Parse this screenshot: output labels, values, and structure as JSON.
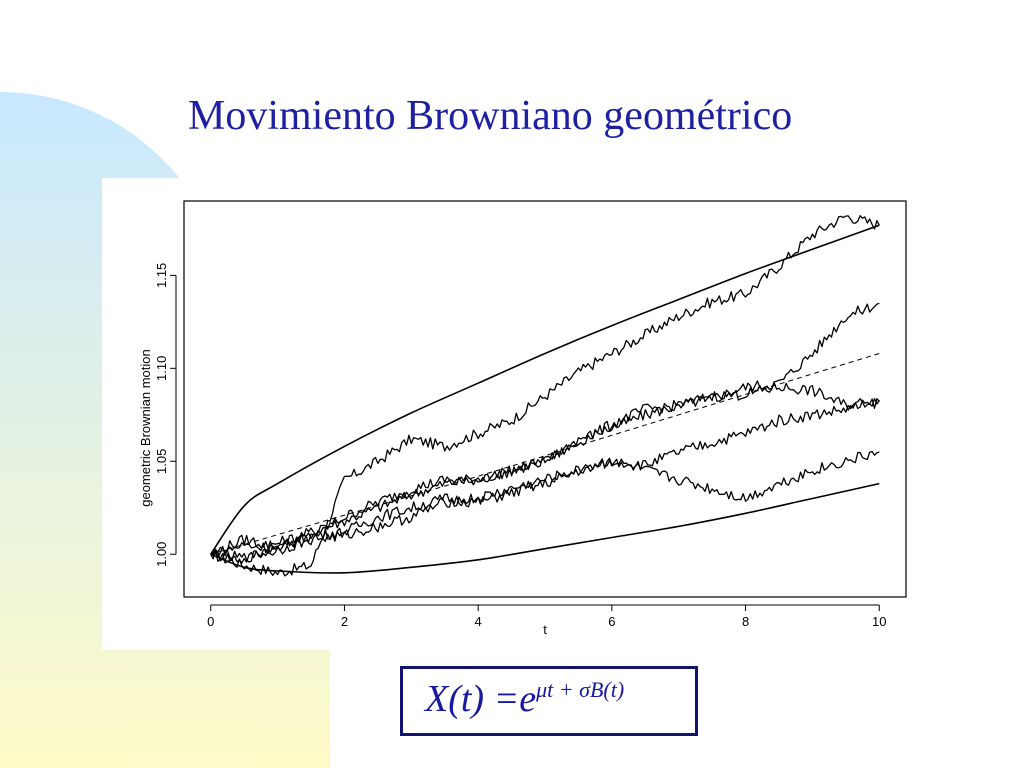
{
  "slide": {
    "title": "Movimiento Browniano geométrico",
    "formula_main": "X(t) =e",
    "formula_exponent": "μt + σB(t)",
    "colors": {
      "title": "#1f1fa3",
      "formula": "#1818a0",
      "formula_border": "#12126f",
      "gradient_top": "#c8e8ff",
      "gradient_bottom": "#fffbc8"
    }
  },
  "chart_data": {
    "type": "line",
    "xlabel": "t",
    "ylabel": "geometric Brownian motion",
    "xlim": [
      -0.4,
      10.4
    ],
    "ylim": [
      0.977,
      1.19
    ],
    "x_ticks": [
      "0",
      "2",
      "4",
      "6",
      "8",
      "10"
    ],
    "y_ticks": [
      "1.00",
      "1.05",
      "1.10",
      "1.15"
    ],
    "x_tick_values": [
      0,
      2,
      4,
      6,
      8,
      10
    ],
    "y_tick_values": [
      1.0,
      1.05,
      1.1,
      1.15
    ],
    "grid": false,
    "mean_curve": {
      "style": "dashed",
      "x": [
        0,
        2,
        4,
        6,
        8,
        10
      ],
      "y": [
        1.0,
        1.021,
        1.042,
        1.064,
        1.086,
        1.108
      ]
    },
    "upper_envelope": {
      "style": "solid",
      "x": [
        0,
        0.5,
        1,
        2,
        3,
        4,
        5,
        6,
        7,
        8,
        9,
        10
      ],
      "y": [
        1.0,
        1.026,
        1.038,
        1.058,
        1.076,
        1.092,
        1.108,
        1.123,
        1.137,
        1.151,
        1.164,
        1.177
      ]
    },
    "lower_envelope": {
      "style": "solid",
      "x": [
        0,
        0.5,
        1,
        2,
        3,
        4,
        5,
        6,
        7,
        8,
        9,
        10
      ],
      "y": [
        1.0,
        0.993,
        0.991,
        0.99,
        0.993,
        0.997,
        1.003,
        1.009,
        1.015,
        1.022,
        1.03,
        1.038
      ]
    },
    "paths": [
      {
        "x": [
          0,
          0.5,
          1,
          1.5,
          2,
          2.5,
          3,
          3.5,
          4,
          4.5,
          5,
          5.5,
          6,
          6.5,
          7,
          7.5,
          8,
          8.5,
          9,
          9.5,
          10
        ],
        "y": [
          1.0,
          0.994,
          0.99,
          0.994,
          1.04,
          1.05,
          1.062,
          1.058,
          1.065,
          1.072,
          1.085,
          1.098,
          1.108,
          1.118,
          1.128,
          1.136,
          1.14,
          1.155,
          1.172,
          1.182,
          1.177
        ]
      },
      {
        "x": [
          0,
          0.5,
          1,
          1.5,
          2,
          2.5,
          3,
          3.5,
          4,
          4.5,
          5,
          5.5,
          6,
          6.5,
          7,
          7.5,
          8,
          8.5,
          9,
          9.5,
          10
        ],
        "y": [
          1.0,
          0.997,
          1.006,
          1.012,
          1.018,
          1.025,
          1.032,
          1.038,
          1.04,
          1.045,
          1.05,
          1.062,
          1.068,
          1.075,
          1.08,
          1.084,
          1.09,
          1.092,
          1.108,
          1.128,
          1.135
        ]
      },
      {
        "x": [
          0,
          0.5,
          1,
          1.5,
          2,
          2.5,
          3,
          3.5,
          4,
          4.5,
          5,
          5.5,
          6,
          6.5,
          7,
          7.5,
          8,
          8.5,
          9,
          9.5,
          10
        ],
        "y": [
          1.0,
          1.008,
          1.004,
          1.01,
          1.02,
          1.028,
          1.035,
          1.04,
          1.04,
          1.045,
          1.05,
          1.06,
          1.07,
          1.078,
          1.08,
          1.085,
          1.086,
          1.09,
          1.088,
          1.08,
          1.083
        ]
      },
      {
        "x": [
          0,
          0.5,
          1,
          1.5,
          2,
          2.5,
          3,
          3.5,
          4,
          4.5,
          5,
          5.5,
          6,
          6.5,
          7,
          7.5,
          8,
          8.5,
          9,
          9.5,
          10
        ],
        "y": [
          1.0,
          1.005,
          1.003,
          1.01,
          1.012,
          1.02,
          1.025,
          1.03,
          1.028,
          1.033,
          1.038,
          1.045,
          1.05,
          1.048,
          1.055,
          1.06,
          1.065,
          1.072,
          1.075,
          1.078,
          1.082
        ]
      },
      {
        "x": [
          0,
          0.5,
          1,
          1.5,
          2,
          2.5,
          3,
          3.5,
          4,
          4.5,
          5,
          5.5,
          6,
          6.5,
          7,
          7.5,
          8,
          8.5,
          9,
          9.5,
          10
        ],
        "y": [
          1.0,
          0.998,
          1.002,
          1.008,
          1.01,
          1.015,
          1.02,
          1.028,
          1.03,
          1.035,
          1.04,
          1.045,
          1.05,
          1.045,
          1.04,
          1.035,
          1.03,
          1.038,
          1.045,
          1.05,
          1.055
        ]
      }
    ]
  }
}
